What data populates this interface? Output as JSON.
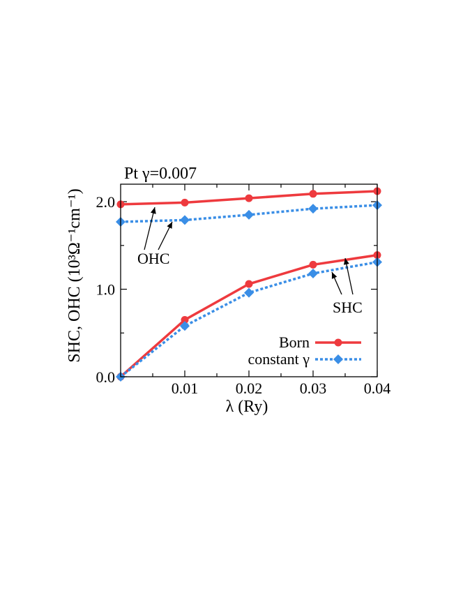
{
  "chart_data": {
    "type": "line",
    "title": "Pt γ=0.007",
    "xlabel": "λ (Ry)",
    "ylabel": "SHC, OHC (10³Ω⁻¹cm⁻¹)",
    "xlim": [
      0,
      0.04
    ],
    "ylim": [
      0,
      2.2
    ],
    "x_ticks": [
      "0.01",
      "0.02",
      "0.03",
      "0.04"
    ],
    "y_ticks": [
      "0.0",
      "1.0",
      "2.0"
    ],
    "grid": false,
    "legend_position": "bottom-right",
    "series": [
      {
        "name": "Born",
        "group": "OHC",
        "color": "#ee3a3e",
        "marker": "circle",
        "line": "solid",
        "x": [
          0,
          0.01,
          0.02,
          0.03,
          0.04
        ],
        "y": [
          1.97,
          1.99,
          2.04,
          2.09,
          2.12
        ]
      },
      {
        "name": "constant γ",
        "group": "OHC",
        "color": "#3a8ee6",
        "marker": "diamond",
        "line": "dotted",
        "x": [
          0,
          0.01,
          0.02,
          0.03,
          0.04
        ],
        "y": [
          1.77,
          1.79,
          1.85,
          1.92,
          1.96
        ]
      },
      {
        "name": "Born",
        "group": "SHC",
        "color": "#ee3a3e",
        "marker": "circle",
        "line": "solid",
        "x": [
          0,
          0.01,
          0.02,
          0.03,
          0.04
        ],
        "y": [
          0.0,
          0.65,
          1.06,
          1.28,
          1.39
        ]
      },
      {
        "name": "constant γ",
        "group": "SHC",
        "color": "#3a8ee6",
        "marker": "diamond",
        "line": "dotted",
        "x": [
          0,
          0.01,
          0.02,
          0.03,
          0.04
        ],
        "y": [
          0.0,
          0.58,
          0.96,
          1.18,
          1.31
        ]
      }
    ],
    "annotations": [
      {
        "text": "OHC"
      },
      {
        "text": "SHC"
      }
    ],
    "legend": [
      {
        "label": "Born",
        "color": "#ee3a3e",
        "marker": "circle",
        "line": "solid"
      },
      {
        "label": "constant γ",
        "color": "#3a8ee6",
        "marker": "diamond",
        "line": "dotted"
      }
    ]
  }
}
